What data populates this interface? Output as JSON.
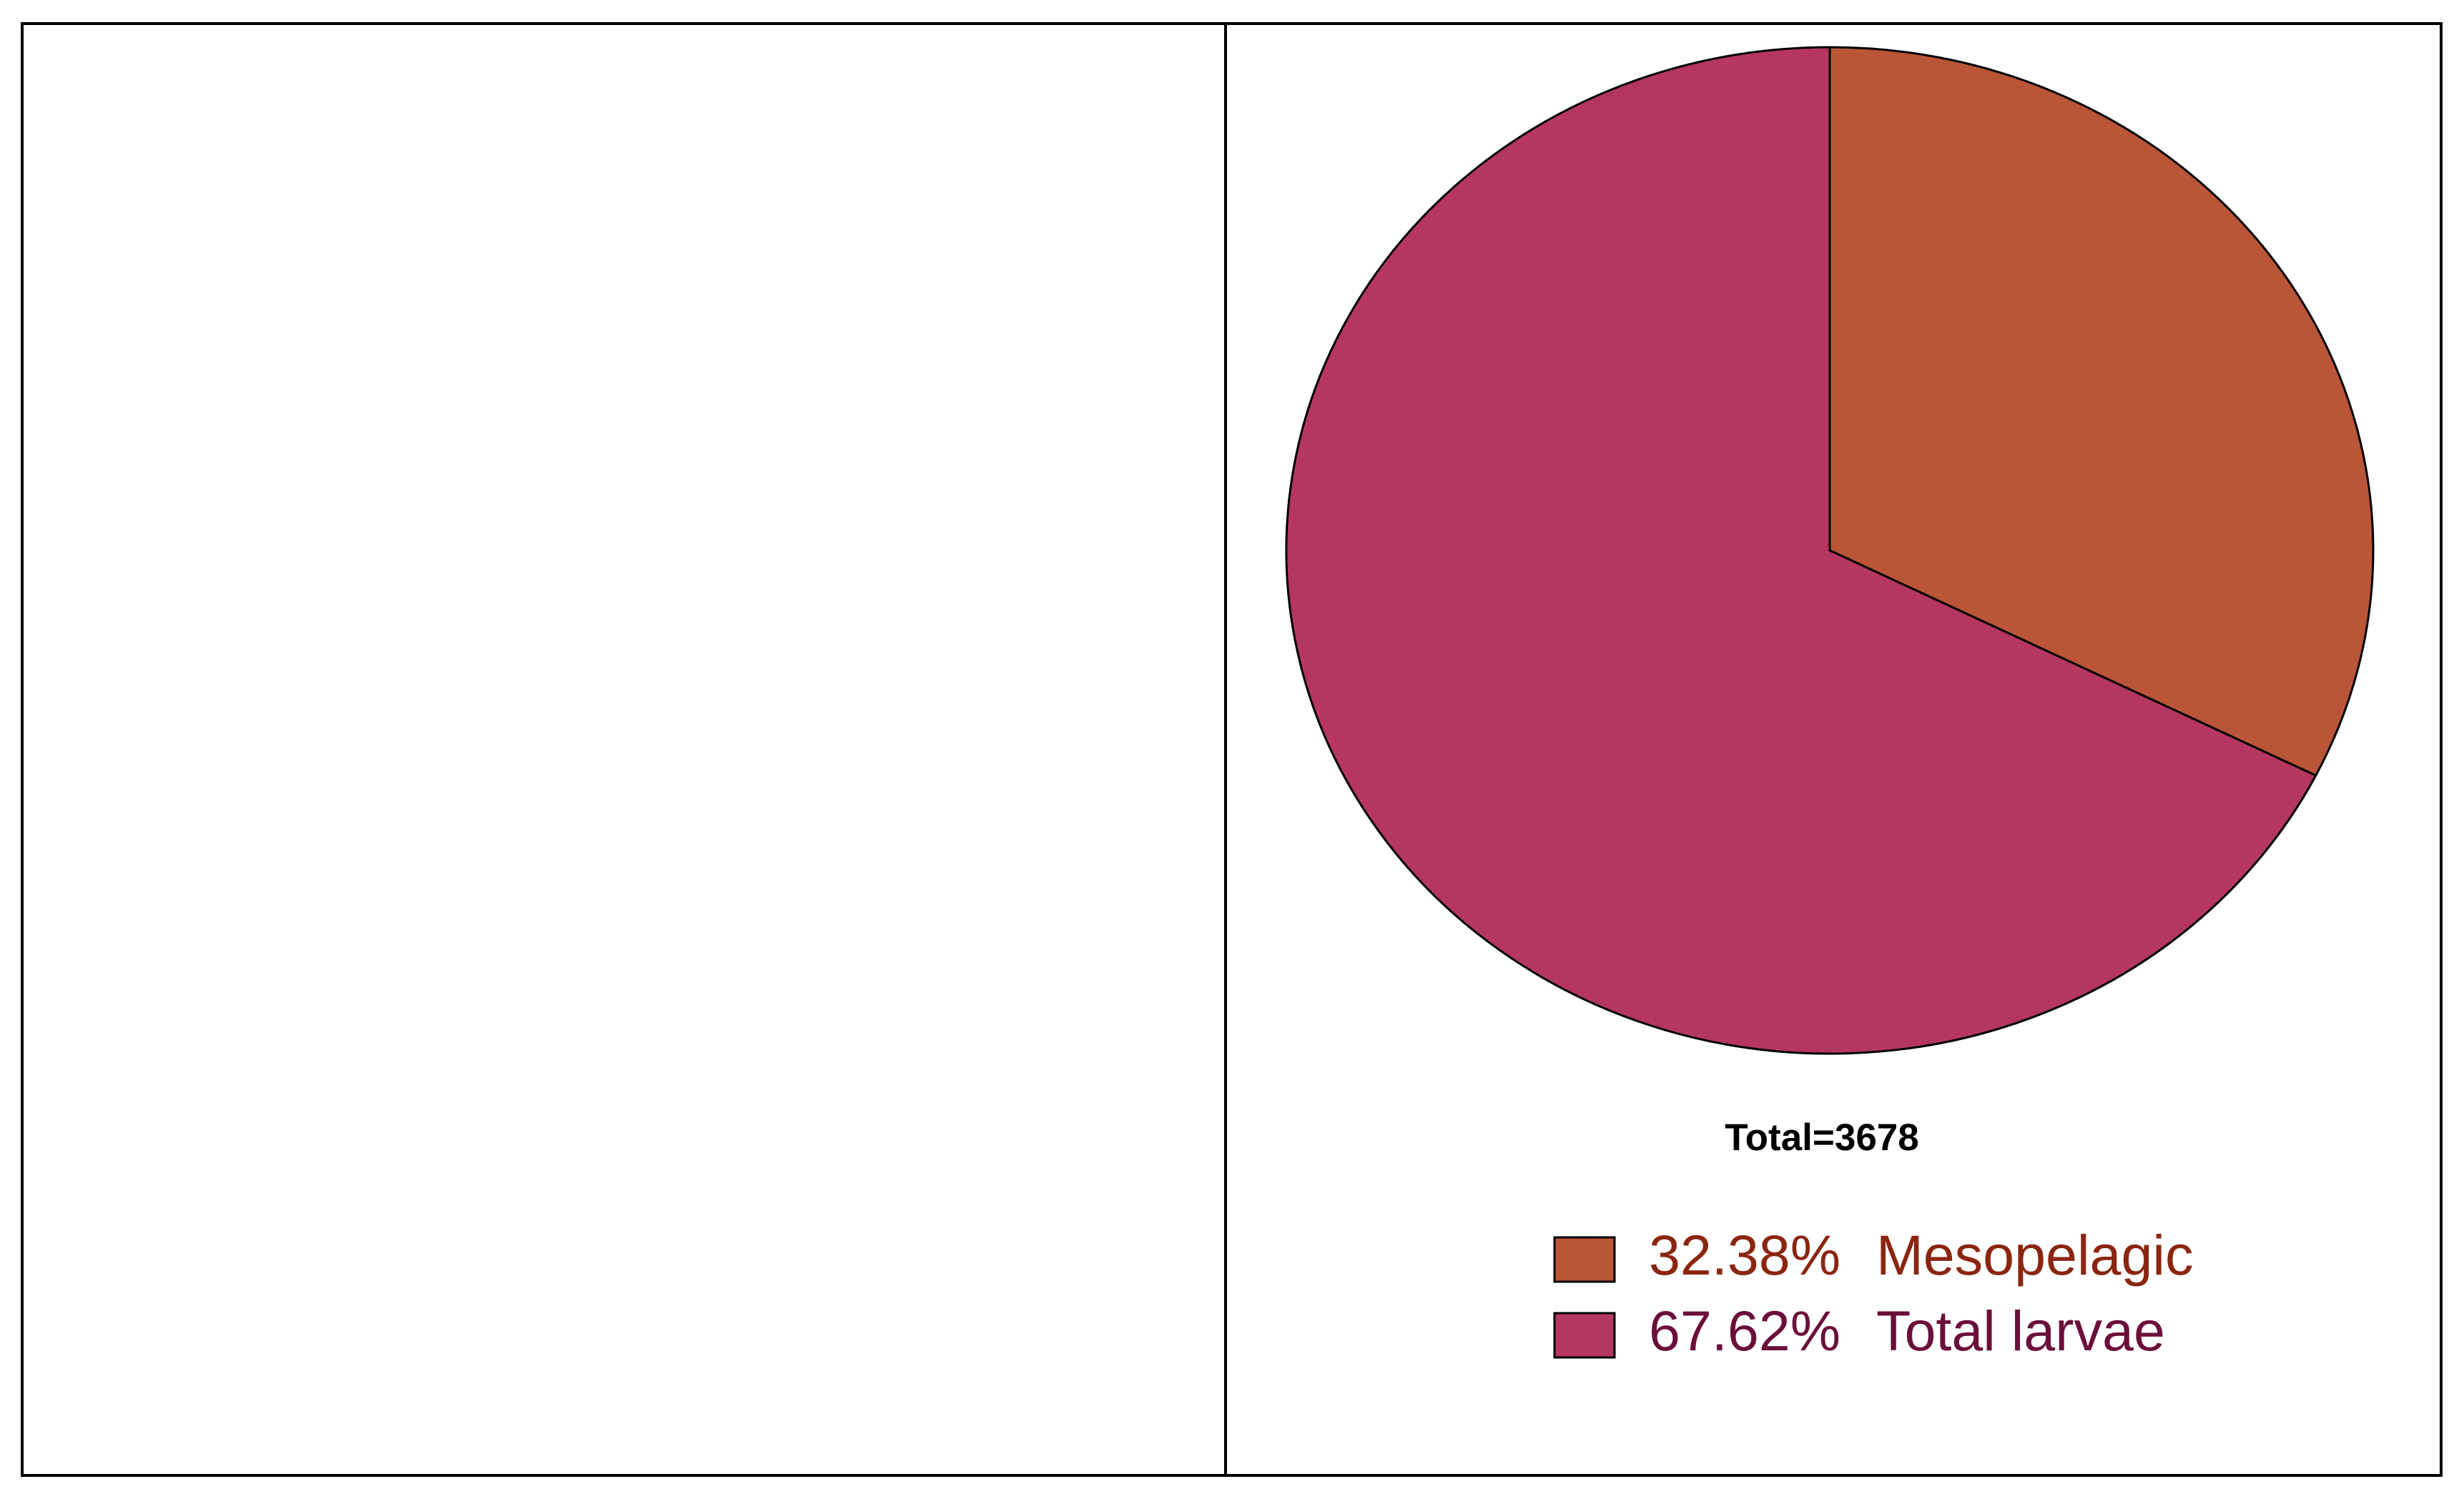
{
  "chart_data": {
    "type": "pie",
    "categories": [
      "Mesopelagic",
      "Total larvae"
    ],
    "values": [
      32.38,
      67.62
    ],
    "value_labels": [
      "32.38%",
      "67.62%"
    ],
    "colors": [
      "#bb5538",
      "#b5375f"
    ],
    "legend_text_colors": [
      "#8b2510",
      "#6b0f3a"
    ],
    "annotation": "Total=3678",
    "legend": "bottom-right"
  }
}
